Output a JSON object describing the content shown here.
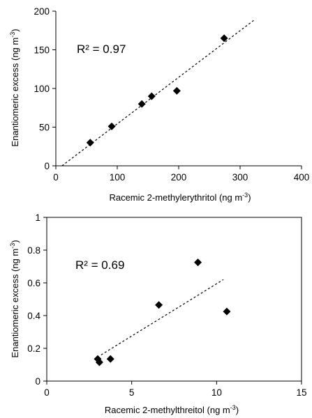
{
  "chart_data": [
    {
      "type": "scatter",
      "xlabel": "Racemic 2-methylerythritol (ng m",
      "xlabel_sup": "-3",
      "xlabel_tail": ")",
      "ylabel": "Enantiomeric excess (ng m",
      "ylabel_sup": "-3",
      "ylabel_tail": ")",
      "xlim": [
        0,
        400
      ],
      "ylim": [
        0,
        200
      ],
      "xticks": [
        "0",
        "100",
        "200",
        "300",
        "400"
      ],
      "yticks": [
        "0",
        "50",
        "100",
        "150",
        "200"
      ],
      "grid": false,
      "annotation": "R² = 0.97",
      "points": [
        {
          "x": 56,
          "y": 30
        },
        {
          "x": 91,
          "y": 51
        },
        {
          "x": 140,
          "y": 80
        },
        {
          "x": 156,
          "y": 90
        },
        {
          "x": 197,
          "y": 97
        },
        {
          "x": 274,
          "y": 165
        }
      ],
      "trendline": {
        "style": "dashed",
        "from": [
          10,
          0
        ],
        "to": [
          322,
          188
        ]
      }
    },
    {
      "type": "scatter",
      "xlabel": "Racemic 2-methylthreitol (ng m",
      "xlabel_sup": "-3",
      "xlabel_tail": ")",
      "ylabel": "Enantiomeric excess (ng m",
      "ylabel_sup": "-3",
      "ylabel_tail": ")",
      "xlim": [
        0,
        15
      ],
      "ylim": [
        0,
        1
      ],
      "xticks": [
        "0",
        "5",
        "10",
        "15"
      ],
      "yticks": [
        "0",
        "0.2",
        "0.4",
        "0.6",
        "0.8",
        "1"
      ],
      "grid": false,
      "annotation": "R² = 0.69",
      "points": [
        {
          "x": 3.0,
          "y": 0.135
        },
        {
          "x": 3.1,
          "y": 0.115
        },
        {
          "x": 3.75,
          "y": 0.135
        },
        {
          "x": 6.6,
          "y": 0.465
        },
        {
          "x": 8.9,
          "y": 0.725
        },
        {
          "x": 10.6,
          "y": 0.425
        }
      ],
      "trendline": {
        "style": "dashed",
        "from": [
          3.2,
          0.16
        ],
        "to": [
          10.4,
          0.62
        ]
      }
    }
  ]
}
